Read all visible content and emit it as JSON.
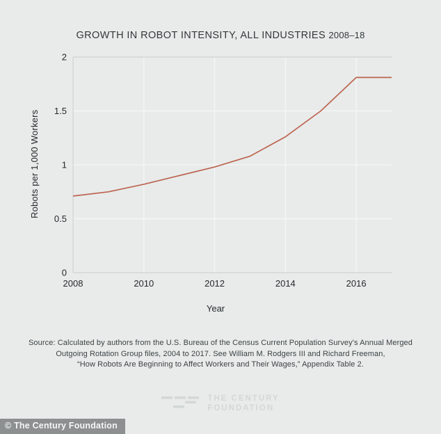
{
  "title": {
    "main": "GROWTH IN ROBOT INTENSITY, ALL INDUSTRIES",
    "years": "2008–18",
    "full": "GROWTH IN ROBOT INTENSITY, ALL INDUSTRIES 2008–18"
  },
  "chart_data": {
    "type": "line",
    "title": "GROWTH IN ROBOT INTENSITY, ALL INDUSTRIES 2008–18",
    "xlabel": "Year",
    "ylabel": "Robots per 1,000 Workers",
    "x": [
      2008,
      2009,
      2010,
      2011,
      2012,
      2013,
      2014,
      2015,
      2016,
      2017
    ],
    "values": [
      0.71,
      0.75,
      0.82,
      0.9,
      0.98,
      1.08,
      1.26,
      1.5,
      1.81,
      1.81
    ],
    "series_name": "Robots per 1,000 Workers",
    "xlim": [
      2008,
      2017
    ],
    "ylim": [
      0,
      2
    ],
    "x_ticks": [
      2008,
      2010,
      2012,
      2014,
      2016
    ],
    "x_tick_labels": [
      "2008",
      "2010",
      "2012",
      "2014",
      "2016"
    ],
    "y_ticks": [
      0,
      0.5,
      1,
      1.5,
      2
    ],
    "y_tick_labels": [
      "0",
      "0.5",
      "1",
      "1.5",
      "2"
    ],
    "grid": true,
    "legend": false
  },
  "source": {
    "lines": [
      "Source:  Calculated by authors from the U.S. Bureau of the Census Current Population Survey's Annual Merged",
      "Outgoing Rotation Group files, 2004 to 2017. See William M. Rodgers III and Richard Freeman,",
      "“How Robots Are Beginning to Affect Workers and Their Wages,” Appendix Table 2."
    ]
  },
  "logo": {
    "line1": "THE CENTURY",
    "line2": "FOUNDATION"
  },
  "footer": {
    "copyright": "© The Century Foundation"
  },
  "colors": {
    "background": "#e8ebea",
    "line": "#bd6450",
    "grid": "#f3f6f5",
    "axis": "#d2d7d7",
    "text": "#33383a",
    "tick_text": "#24292b",
    "logo": "#d3d7d6",
    "copyright_bg": "#8c9091",
    "copyright_text": "#f5f6f6"
  }
}
